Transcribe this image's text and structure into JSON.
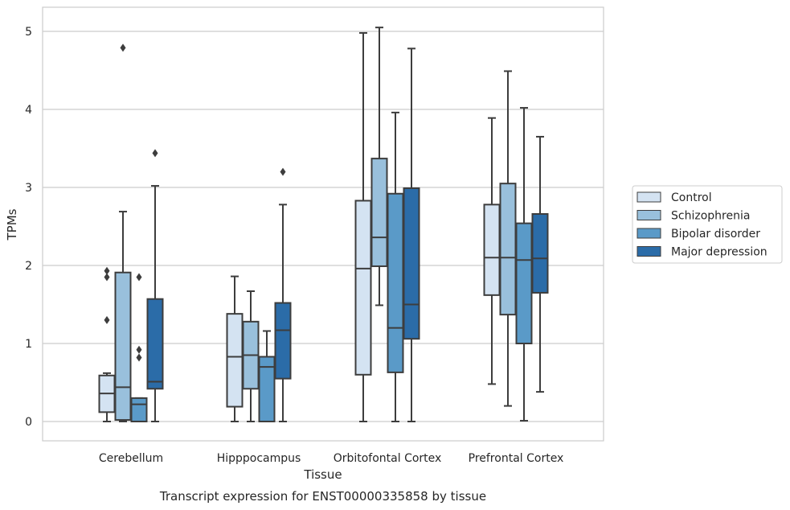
{
  "chart_data": {
    "type": "box",
    "caption": "Transcript expression for ENST00000335858 by tissue",
    "xlabel": "Tissue",
    "ylabel": "TPMs",
    "ylim": [
      -0.25,
      5.3
    ],
    "yticks": [
      0,
      1,
      2,
      3,
      4,
      5
    ],
    "grid": "horizontal",
    "legend_position": "right",
    "categories": [
      "Cerebellum",
      "Hipppocampus",
      "Orbitofontal Cortex",
      "Prefrontal Cortex"
    ],
    "series": [
      {
        "name": "Control",
        "color": "#d4e3f2",
        "boxes": [
          {
            "whislo": 0.0,
            "q1": 0.12,
            "med": 0.36,
            "q3": 0.59,
            "whishi": 0.62,
            "fliers": [
              1.3,
              1.85,
              1.93
            ]
          },
          {
            "whislo": 0.0,
            "q1": 0.19,
            "med": 0.83,
            "q3": 1.38,
            "whishi": 1.86,
            "fliers": []
          },
          {
            "whislo": 0.0,
            "q1": 0.6,
            "med": 1.96,
            "q3": 2.83,
            "whishi": 4.98,
            "fliers": []
          },
          {
            "whislo": 0.48,
            "q1": 1.62,
            "med": 2.1,
            "q3": 2.78,
            "whishi": 3.89,
            "fliers": []
          }
        ]
      },
      {
        "name": "Schizophrenia",
        "color": "#99c0dc",
        "boxes": [
          {
            "whislo": 0.0,
            "q1": 0.02,
            "med": 0.44,
            "q3": 1.91,
            "whishi": 2.69,
            "fliers": [
              4.79
            ]
          },
          {
            "whislo": 0.0,
            "q1": 0.42,
            "med": 0.85,
            "q3": 1.28,
            "whishi": 1.67,
            "fliers": []
          },
          {
            "whislo": 1.49,
            "q1": 1.99,
            "med": 2.36,
            "q3": 3.37,
            "whishi": 5.05,
            "fliers": []
          },
          {
            "whislo": 0.2,
            "q1": 1.37,
            "med": 2.1,
            "q3": 3.05,
            "whishi": 4.49,
            "fliers": []
          }
        ]
      },
      {
        "name": "Bipolar disorder",
        "color": "#5a9ac8",
        "boxes": [
          {
            "whislo": 0.0,
            "q1": 0.0,
            "med": 0.22,
            "q3": 0.3,
            "whishi": 0.3,
            "fliers": [
              0.82,
              0.92,
              1.85
            ]
          },
          {
            "whislo": 0.0,
            "q1": 0.0,
            "med": 0.7,
            "q3": 0.83,
            "whishi": 1.16,
            "fliers": []
          },
          {
            "whislo": 0.0,
            "q1": 0.63,
            "med": 1.2,
            "q3": 2.92,
            "whishi": 3.96,
            "fliers": []
          },
          {
            "whislo": 0.01,
            "q1": 1.0,
            "med": 2.07,
            "q3": 2.54,
            "whishi": 4.02,
            "fliers": []
          }
        ]
      },
      {
        "name": "Major depression",
        "color": "#2b6ca8",
        "boxes": [
          {
            "whislo": 0.0,
            "q1": 0.42,
            "med": 0.51,
            "q3": 1.57,
            "whishi": 3.02,
            "fliers": [
              3.44
            ]
          },
          {
            "whislo": 0.0,
            "q1": 0.55,
            "med": 1.17,
            "q3": 1.52,
            "whishi": 2.78,
            "fliers": [
              3.2
            ]
          },
          {
            "whislo": 0.0,
            "q1": 1.06,
            "med": 1.5,
            "q3": 2.99,
            "whishi": 4.78,
            "fliers": []
          },
          {
            "whislo": 0.38,
            "q1": 1.65,
            "med": 2.09,
            "q3": 2.66,
            "whishi": 3.65,
            "fliers": []
          }
        ]
      }
    ]
  }
}
